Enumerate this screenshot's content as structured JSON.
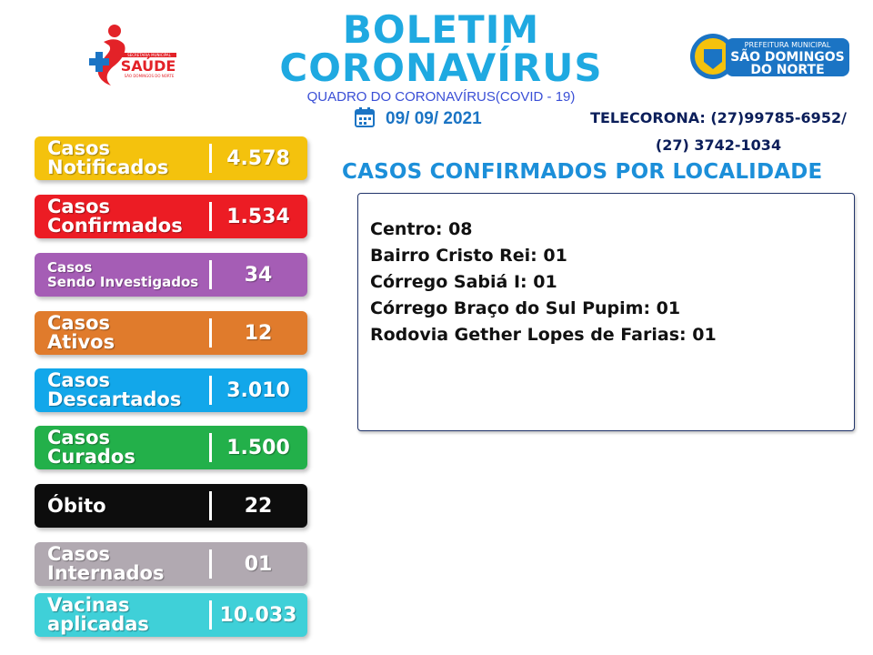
{
  "header": {
    "title_line1": "BOLETIM",
    "title_line2": "CORONAVÍRUS",
    "subtitle": "QUADRO DO CORONAVÍRUS(COVID - 19)",
    "date": "09/ 09/ 2021",
    "phone_line1": "TELECORONA: (27)99785-6952/",
    "phone_line2": "(27) 3742-1034"
  },
  "logos": {
    "saude": {
      "text": "SAÚDE",
      "small_text": "SECRETARIA MUNICIPAL",
      "bottom_text": "SÃO DOMINGOS DO NORTE"
    },
    "prefeitura": {
      "top_text": "PREFEITURA MUNICIPAL",
      "line1": "SÃO DOMINGOS",
      "line2": "DO NORTE"
    }
  },
  "stats": [
    {
      "label1": "Casos",
      "label2": "Notificados",
      "value": "4.578",
      "color": "#f4c20d"
    },
    {
      "label1": "Casos",
      "label2": "Confirmados",
      "value": "1.534",
      "color": "#ec1c24"
    },
    {
      "label1": "Casos",
      "label2": "Sendo Investigados",
      "value": "34",
      "color": "#a55db5"
    },
    {
      "label1": "Casos",
      "label2": "Ativos",
      "value": "12",
      "color": "#e07b2c"
    },
    {
      "label1": "Casos",
      "label2": "Descartados",
      "value": "3.010",
      "color": "#12a7ea"
    },
    {
      "label1": "Casos",
      "label2": "Curados",
      "value": "1.500",
      "color": "#23b04a"
    },
    {
      "label1": "Óbito",
      "label2": "",
      "value": "22",
      "color": "#0d0d0d"
    },
    {
      "label1": "Casos",
      "label2": "Internados",
      "value": "01",
      "color": "#b1a9b1"
    },
    {
      "label1": "Vacinas",
      "label2": "aplicadas",
      "value": "10.033",
      "color": "#3fd0d8"
    }
  ],
  "localities": {
    "heading": "CASOS CONFIRMADOS POR LOCALIDADE",
    "items": [
      "Centro: 08",
      "Bairro Cristo Rei: 01",
      "Córrego Sabiá I: 01",
      "Córrego Braço do Sul Pupim: 01",
      "Rodovia Gether Lopes de Farias: 01"
    ]
  }
}
